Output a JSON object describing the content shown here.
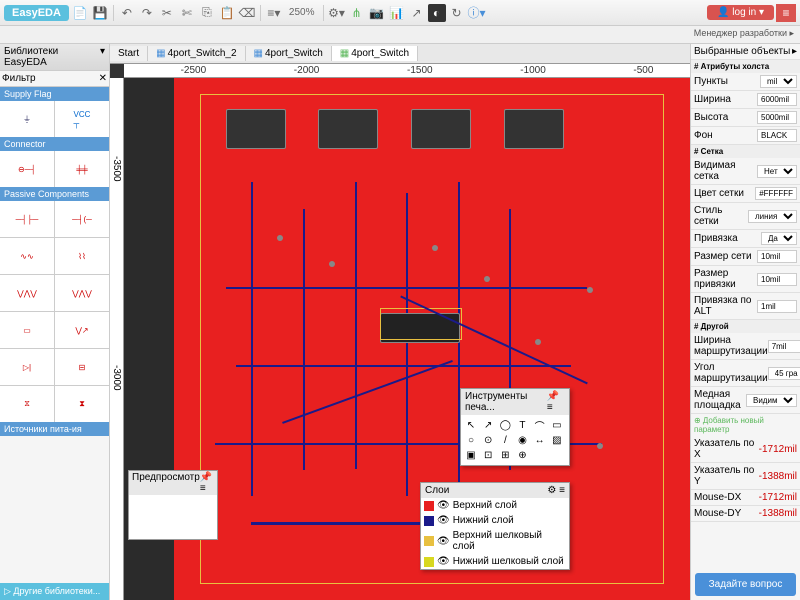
{
  "toolbar": {
    "logo": "EasyEDA",
    "zoom": "250%",
    "login": "log in ▾"
  },
  "devmgr": "Менеджер разработки ▸",
  "left": {
    "title": "Библиотеки EasyEDA",
    "filter": "Фильтр",
    "cats": [
      "Supply Flag",
      "Connector",
      "Passive Components",
      "Источники пита-ия"
    ],
    "other": "▷ Другие библиотеки..."
  },
  "tabs": [
    {
      "l": "Start"
    },
    {
      "l": "4port_Switch_2"
    },
    {
      "l": "4port_Switch"
    },
    {
      "l": "4port_Switch",
      "a": true
    }
  ],
  "rulerH": [
    "-2500",
    "-2000",
    "-1500",
    "-1000",
    "-500"
  ],
  "rulerV": [
    "-3500",
    "-3000"
  ],
  "preview": "Предпросмотр",
  "tools": {
    "title": "Инструменты печа..."
  },
  "layers": {
    "title": "Слои",
    "items": [
      {
        "c": "#e82020",
        "n": "Верхний слой"
      },
      {
        "c": "#1a1a8a",
        "n": "Нижний слой"
      },
      {
        "c": "#e8c040",
        "n": "Верхний шелковый слой"
      },
      {
        "c": "#d8d820",
        "n": "Нижний шелковый слой"
      }
    ]
  },
  "right": {
    "sel": "Выбранные объекты",
    "canvas_attr": "# Атрибуты холста",
    "props1": [
      [
        "Пункты",
        "mil",
        "sel"
      ],
      [
        "Ширина",
        "6000mil",
        "val"
      ],
      [
        "Высота",
        "5000mil",
        "val"
      ],
      [
        "Фон",
        "BLACK",
        "val"
      ]
    ],
    "grid_hdr": "# Сетка",
    "props2": [
      [
        "Видимая сетка",
        "Нет",
        "sel"
      ],
      [
        "Цвет сетки",
        "#FFFFFF",
        "val"
      ],
      [
        "Стиль сетки",
        "линия",
        "sel"
      ],
      [
        "Привязка",
        "Да",
        "sel"
      ],
      [
        "Размер сети",
        "10mil",
        "val"
      ],
      [
        "Размер привязки",
        "10mil",
        "val"
      ],
      [
        "Привязка по ALT",
        "1mil",
        "val"
      ]
    ],
    "other_hdr": "# Другой",
    "props3": [
      [
        "Ширина маршрутизации",
        "7mil",
        "val"
      ],
      [
        "Угол маршрутизации",
        "45 гра",
        "sel"
      ],
      [
        "Медная площадка",
        "Видим",
        "sel"
      ]
    ],
    "add": "⊕ Добавить новый параметр",
    "cursor": [
      [
        "Указатель по X",
        "-1712mil"
      ],
      [
        "Указатель по Y",
        "-1388mil"
      ],
      [
        "Mouse-DX",
        "-1712mil"
      ],
      [
        "Mouse-DY",
        "-1388mil"
      ]
    ],
    "ask": "Задайте вопрос"
  },
  "colors": {
    "pcb": "#e82020",
    "bottom": "#1a1a8a",
    "silk": "#e8c040"
  }
}
